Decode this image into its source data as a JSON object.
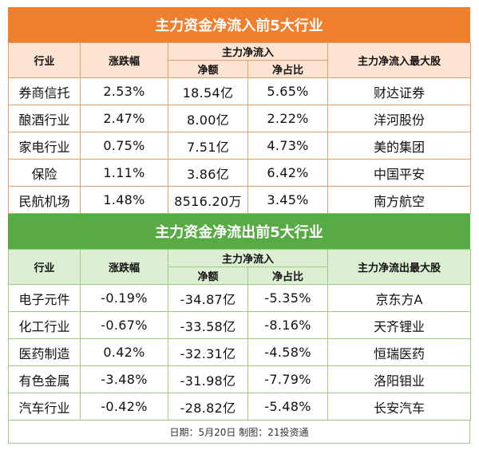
{
  "inflow": {
    "title": "主力资金净流入前5大行业",
    "headers": {
      "industry": "行业",
      "change": "涨跌幅",
      "group": "主力净流入",
      "net": "净额",
      "ratio": "净占比",
      "top_stock": "主力净流入最大股"
    },
    "rows": [
      {
        "industry": "券商信托",
        "change": "2.53%",
        "net": "18.54亿",
        "ratio": "5.65%",
        "top_stock": "财达证券"
      },
      {
        "industry": "酿酒行业",
        "change": "2.47%",
        "net": "8.00亿",
        "ratio": "2.22%",
        "top_stock": "洋河股份"
      },
      {
        "industry": "家电行业",
        "change": "0.75%",
        "net": "7.51亿",
        "ratio": "4.73%",
        "top_stock": "美的集团"
      },
      {
        "industry": "保险",
        "change": "1.11%",
        "net": "3.86亿",
        "ratio": "6.42%",
        "top_stock": "中国平安"
      },
      {
        "industry": "民航机场",
        "change": "1.48%",
        "net": "8516.20万",
        "ratio": "3.45%",
        "top_stock": "南方航空"
      }
    ]
  },
  "outflow": {
    "title": "主力资金净流出前5大行业",
    "headers": {
      "industry": "行业",
      "change": "涨跌幅",
      "group": "主力净流入",
      "net": "净额",
      "ratio": "净占比",
      "top_stock": "主力净流出最大股"
    },
    "rows": [
      {
        "industry": "电子元件",
        "change": "-0.19%",
        "net": "-34.87亿",
        "ratio": "-5.35%",
        "top_stock": "京东方A"
      },
      {
        "industry": "化工行业",
        "change": "-0.67%",
        "net": "-33.58亿",
        "ratio": "-8.16%",
        "top_stock": "天齐锂业"
      },
      {
        "industry": "医药制造",
        "change": "0.42%",
        "net": "-32.31亿",
        "ratio": "-4.58%",
        "top_stock": "恒瑞医药"
      },
      {
        "industry": "有色金属",
        "change": "-3.48%",
        "net": "-31.98亿",
        "ratio": "-7.79%",
        "top_stock": "洛阳钼业"
      },
      {
        "industry": "汽车行业",
        "change": "-0.42%",
        "net": "-28.82亿",
        "ratio": "-5.48%",
        "top_stock": "长安汽车"
      }
    ]
  },
  "footer": "日期：5月20日 制图：21投资通",
  "colors": {
    "inflow_banner": "#ef7f2c",
    "outflow_banner": "#58aa44",
    "inflow_header": "#fde3d1",
    "outflow_header": "#ddefd3"
  }
}
